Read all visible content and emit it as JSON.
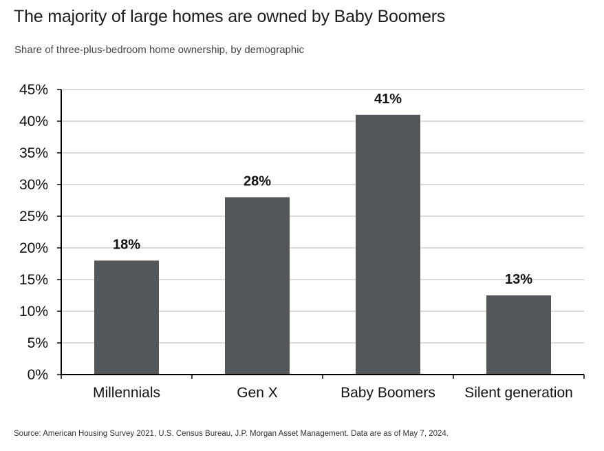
{
  "header": {
    "title": "The majority of large homes are owned by Baby Boomers",
    "subtitle": "Share of three-plus-bedroom home ownership, by demographic"
  },
  "footer": {
    "source": "Source: American Housing Survey 2021, U.S. Census Bureau, J.P. Morgan Asset Management. Data are as of May 7, 2024."
  },
  "colors": {
    "bar": "#54575a",
    "grid": "#c8c8c8",
    "axis": "#000000"
  },
  "chart_data": {
    "type": "bar",
    "title": "The majority of large homes are owned by Baby Boomers",
    "subtitle": "Share of three-plus-bedroom home ownership, by demographic",
    "xlabel": "",
    "ylabel": "",
    "categories": [
      "Millennials",
      "Gen X",
      "Baby Boomers",
      "Silent generation"
    ],
    "values": [
      18,
      28,
      41,
      12.5
    ],
    "data_labels": [
      "18%",
      "28%",
      "41%",
      "13%"
    ],
    "ylim": [
      0,
      45
    ],
    "y_ticks": [
      0,
      5,
      10,
      15,
      20,
      25,
      30,
      35,
      40,
      45
    ],
    "y_tick_labels": [
      "0%",
      "5%",
      "10%",
      "15%",
      "20%",
      "25%",
      "30%",
      "35%",
      "40%",
      "45%"
    ],
    "grid": true,
    "legend": "none"
  }
}
